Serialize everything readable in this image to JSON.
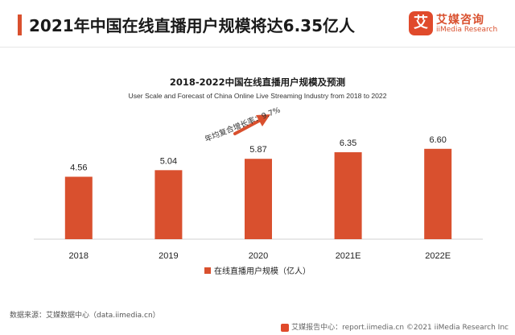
{
  "header": {
    "title": "2021年中国在线直播用户规模将达6.35亿人"
  },
  "logo": {
    "mark": "艾",
    "name_cn": "艾媒咨询",
    "name_en": "iiMedia Research"
  },
  "chart_data": {
    "type": "bar",
    "title": "2018-2022中国在线直播用户规模及预测",
    "subtitle": "User Scale and Forecast of China Online Live Streaming Industry from 2018 to 2022",
    "categories": [
      "2018",
      "2019",
      "2020",
      "2021E",
      "2022E"
    ],
    "series": [
      {
        "name": "在线直播用户规模（亿人）",
        "values": [
          4.56,
          5.04,
          5.87,
          6.35,
          6.6
        ]
      }
    ],
    "value_labels": [
      "4.56",
      "5.04",
      "5.87",
      "6.35",
      "6.60"
    ],
    "annotation": "年均复合增长率：9.7%",
    "ylim": [
      0,
      10
    ],
    "color": "#d9502e",
    "legend_position": "bottom",
    "grid": false
  },
  "source": "数据来源：艾媒数据中心（data.iimedia.cn）",
  "footer": "艾媒报告中心：report.iimedia.cn ©2021  iiMedia Research  Inc"
}
